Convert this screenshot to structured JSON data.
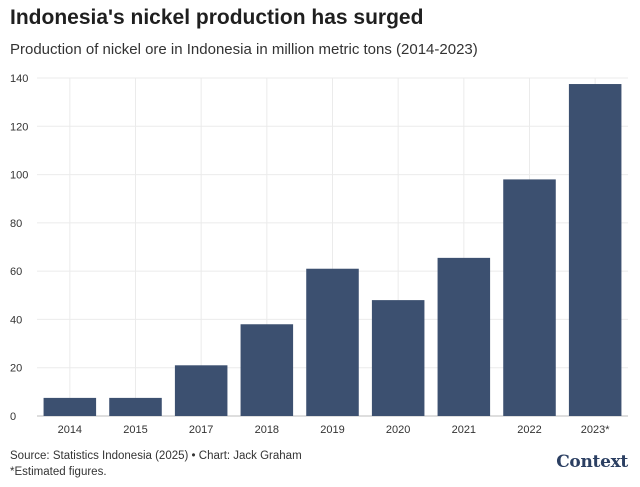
{
  "title": "Indonesia's nickel production has surged",
  "subtitle": "Production of nickel ore in Indonesia in million metric tons (2014-2023)",
  "footer": {
    "source": "Source: Statistics Indonesia (2025) • Chart: Jack Graham",
    "note": "*Estimated figures."
  },
  "brand": "Context",
  "colors": {
    "bar": "#3c5070",
    "grid": "#ebebeb",
    "axis_text": "#333333"
  },
  "chart_data": {
    "type": "bar",
    "title": "Indonesia's nickel production has surged",
    "subtitle": "Production of nickel ore in Indonesia in million metric tons (2014-2023)",
    "xlabel": "",
    "ylabel": "",
    "categories": [
      "2014",
      "2015",
      "2017",
      "2018",
      "2019",
      "2020",
      "2021",
      "2022",
      "2023*"
    ],
    "values": [
      7.5,
      7.5,
      21,
      38,
      61,
      48,
      65.5,
      98,
      137.5
    ],
    "ylim": [
      0,
      140
    ],
    "yticks": [
      0,
      20,
      40,
      60,
      80,
      100,
      120,
      140
    ],
    "grid": true,
    "legend": "none"
  }
}
